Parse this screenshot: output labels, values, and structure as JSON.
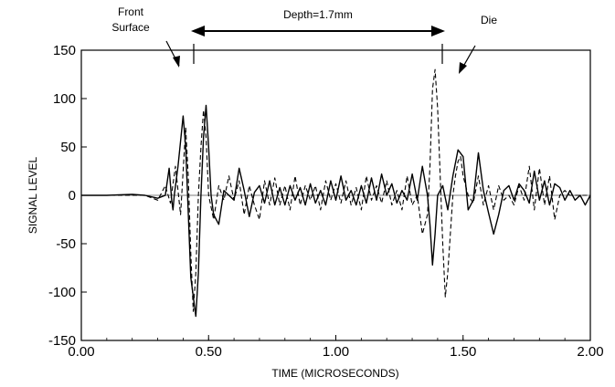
{
  "chart_data": {
    "type": "line",
    "title": "",
    "xlabel": "TIME (MICROSECONDS)",
    "ylabel": "SIGNAL LEVEL",
    "xlim": [
      0,
      2
    ],
    "ylim": [
      -150,
      150
    ],
    "x_ticks": [
      "0.00",
      "0.50",
      "1.00",
      "1.50",
      "2.00"
    ],
    "y_ticks": [
      "150",
      "100",
      "50",
      "0",
      "-50",
      "-100",
      "-150"
    ],
    "grid": false,
    "legend": "none",
    "annotations": {
      "front_surface_line1": "Front",
      "front_surface_line2": "Surface",
      "depth": "Depth=1.7mm",
      "die": "Die",
      "markers_x": [
        0.44,
        1.42
      ]
    },
    "series": [
      {
        "style": "solid",
        "color": "#000000",
        "x": [
          0.0,
          0.1,
          0.2,
          0.25,
          0.3,
          0.33,
          0.345,
          0.355,
          0.36,
          0.365,
          0.38,
          0.4,
          0.41,
          0.43,
          0.45,
          0.46,
          0.47,
          0.48,
          0.49,
          0.5,
          0.51,
          0.52,
          0.54,
          0.56,
          0.58,
          0.6,
          0.62,
          0.64,
          0.66,
          0.68,
          0.7,
          0.72,
          0.74,
          0.76,
          0.78,
          0.8,
          0.82,
          0.84,
          0.86,
          0.88,
          0.9,
          0.92,
          0.94,
          0.96,
          0.98,
          1.0,
          1.02,
          1.04,
          1.06,
          1.08,
          1.1,
          1.12,
          1.14,
          1.16,
          1.18,
          1.2,
          1.22,
          1.24,
          1.26,
          1.28,
          1.3,
          1.32,
          1.34,
          1.36,
          1.37,
          1.38,
          1.39,
          1.4,
          1.42,
          1.44,
          1.46,
          1.48,
          1.5,
          1.52,
          1.54,
          1.56,
          1.58,
          1.6,
          1.62,
          1.64,
          1.66,
          1.68,
          1.7,
          1.72,
          1.74,
          1.76,
          1.78,
          1.8,
          1.82,
          1.84,
          1.86,
          1.88,
          1.9,
          1.92,
          1.94,
          1.96,
          1.98,
          2.0
        ],
        "y": [
          0,
          0,
          1,
          0,
          -3,
          0,
          28,
          -5,
          -15,
          0,
          30,
          82,
          50,
          -85,
          -125,
          -80,
          0,
          60,
          93,
          50,
          0,
          -20,
          -30,
          5,
          0,
          -5,
          28,
          5,
          -22,
          3,
          10,
          -8,
          15,
          -10,
          8,
          -10,
          10,
          -5,
          8,
          -10,
          12,
          -8,
          5,
          -10,
          15,
          -5,
          20,
          -5,
          5,
          -10,
          10,
          -8,
          18,
          -5,
          22,
          0,
          12,
          -8,
          5,
          -5,
          22,
          -5,
          30,
          0,
          -30,
          -72,
          -40,
          0,
          10,
          -15,
          20,
          47,
          40,
          -15,
          -5,
          44,
          5,
          -18,
          -40,
          -20,
          5,
          10,
          -5,
          12,
          5,
          -8,
          25,
          -5,
          15,
          -10,
          12,
          8,
          -5,
          5,
          -5,
          0,
          -10,
          0
        ]
      },
      {
        "style": "dashed",
        "color": "#000000",
        "x": [
          0.0,
          0.15,
          0.25,
          0.3,
          0.33,
          0.35,
          0.37,
          0.39,
          0.41,
          0.42,
          0.43,
          0.44,
          0.45,
          0.46,
          0.47,
          0.48,
          0.49,
          0.5,
          0.52,
          0.54,
          0.56,
          0.58,
          0.6,
          0.62,
          0.64,
          0.66,
          0.68,
          0.7,
          0.72,
          0.74,
          0.76,
          0.78,
          0.8,
          0.82,
          0.84,
          0.86,
          0.88,
          0.9,
          0.92,
          0.94,
          0.96,
          0.98,
          1.0,
          1.02,
          1.04,
          1.06,
          1.08,
          1.1,
          1.12,
          1.14,
          1.16,
          1.18,
          1.2,
          1.22,
          1.24,
          1.26,
          1.28,
          1.3,
          1.32,
          1.34,
          1.36,
          1.37,
          1.38,
          1.39,
          1.4,
          1.41,
          1.42,
          1.43,
          1.44,
          1.45,
          1.46,
          1.47,
          1.48,
          1.49,
          1.5,
          1.52,
          1.54,
          1.56,
          1.58,
          1.6,
          1.62,
          1.64,
          1.66,
          1.68,
          1.7,
          1.72,
          1.74,
          1.76,
          1.78,
          1.8,
          1.82,
          1.84,
          1.86,
          1.88,
          1.9,
          1.92,
          1.94,
          1.96,
          1.98,
          2.0
        ],
        "y": [
          0,
          0,
          0,
          -5,
          10,
          -8,
          30,
          -20,
          70,
          20,
          -60,
          -120,
          -80,
          0,
          50,
          88,
          60,
          0,
          -25,
          10,
          -5,
          20,
          -5,
          15,
          -20,
          10,
          -10,
          -25,
          15,
          -10,
          18,
          -10,
          10,
          -15,
          20,
          -10,
          10,
          -5,
          10,
          -15,
          15,
          -5,
          12,
          -8,
          15,
          -10,
          8,
          -15,
          20,
          -5,
          10,
          -8,
          15,
          -10,
          5,
          -15,
          20,
          -10,
          0,
          -40,
          -20,
          30,
          110,
          130,
          90,
          20,
          -50,
          -105,
          -80,
          -40,
          0,
          20,
          35,
          40,
          20,
          0,
          -8,
          20,
          -10,
          10,
          -15,
          10,
          -5,
          0,
          -10,
          10,
          -5,
          30,
          -15,
          28,
          -10,
          20,
          -25,
          0,
          5,
          0,
          0,
          0,
          0,
          0
        ]
      }
    ]
  }
}
